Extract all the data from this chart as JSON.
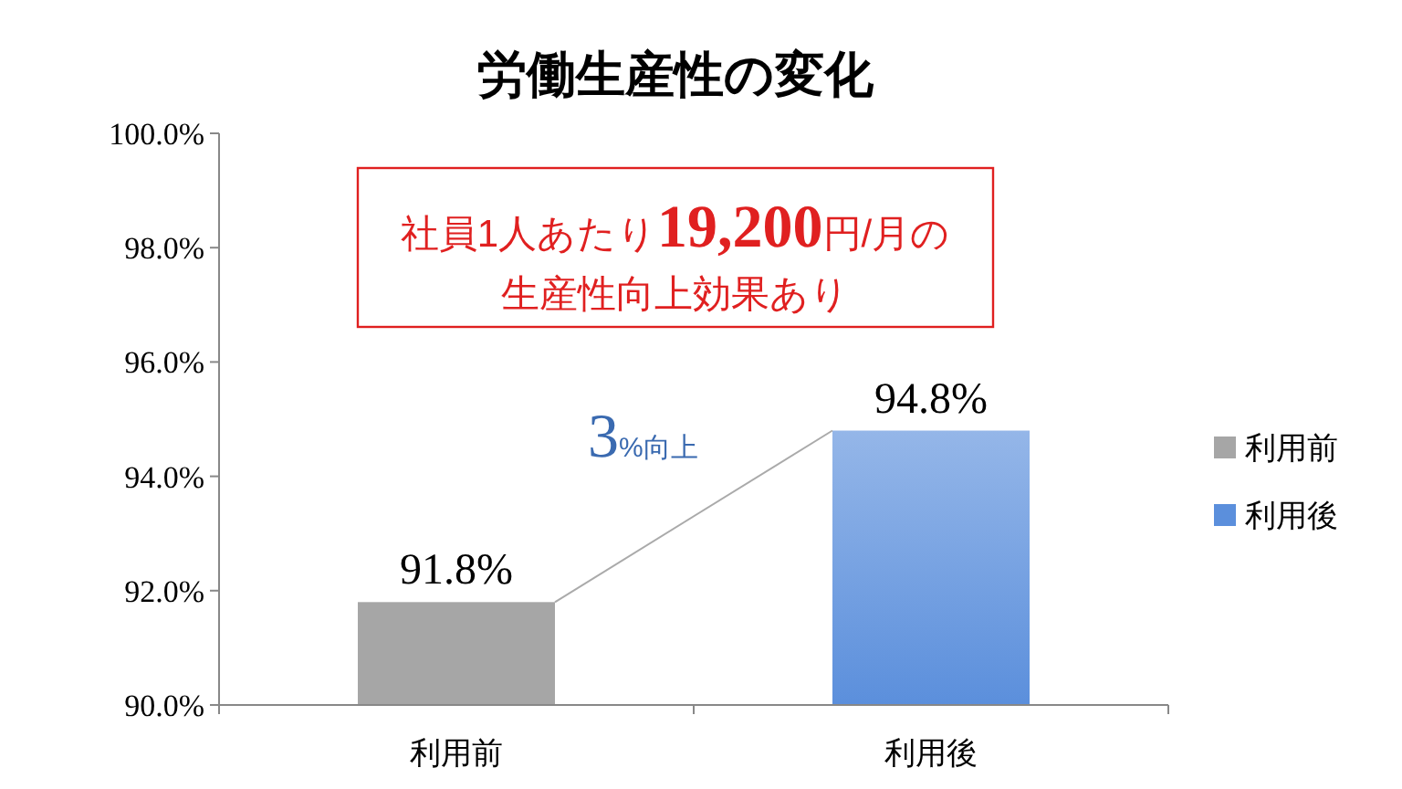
{
  "chart_data": {
    "type": "bar",
    "title": "労働生産性の変化",
    "categories": [
      "利用前",
      "利用後"
    ],
    "series": [
      {
        "name": "利用前",
        "color": "#a6a6a6",
        "values": [
          91.8,
          null
        ],
        "value_labels": [
          "91.8%",
          null
        ]
      },
      {
        "name": "利用後",
        "color": "#5b8fdc",
        "values": [
          null,
          94.8
        ],
        "value_labels": [
          null,
          "94.8%"
        ]
      }
    ],
    "ylim": [
      90,
      100
    ],
    "yticks": [
      {
        "value": 90,
        "label": "90.0%"
      },
      {
        "value": 92,
        "label": "92.0%"
      },
      {
        "value": 94,
        "label": "94.0%"
      },
      {
        "value": 96,
        "label": "96.0%"
      },
      {
        "value": 98,
        "label": "98.0%"
      },
      {
        "value": 100,
        "label": "100.0%"
      }
    ],
    "legend": "right",
    "annotations": [
      "社員1人あたり19,200円/月の",
      "生産性向上効果あり",
      "3%向上"
    ]
  }
}
